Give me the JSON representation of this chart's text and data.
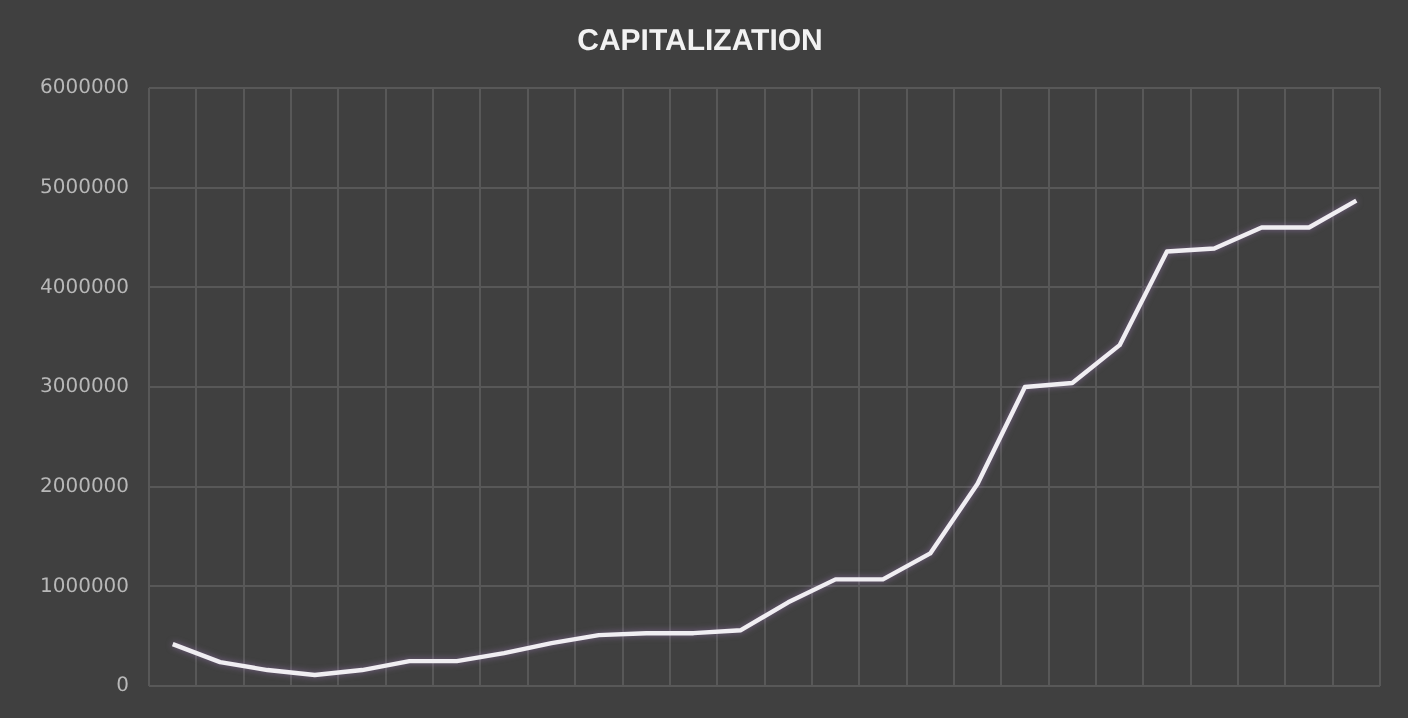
{
  "chart_data": {
    "type": "line",
    "title": "CAPITALIZATION",
    "categories": [
      null,
      null,
      null,
      null,
      null,
      null,
      null,
      null,
      null,
      null,
      null,
      null,
      null,
      null,
      null,
      null,
      null,
      null,
      null,
      null,
      null,
      null,
      null,
      null,
      null,
      null
    ],
    "series": [
      {
        "color": "#f0eef2",
        "values": [
          420000,
          240000,
          160000,
          110000,
          160000,
          250000,
          250000,
          330000,
          430000,
          510000,
          530000,
          530000,
          560000,
          840000,
          1070000,
          1070000,
          1330000,
          2030000,
          3000000,
          3040000,
          3420000,
          4360000,
          4390000,
          4600000,
          4600000,
          4870000
        ]
      }
    ],
    "ylim": [
      0,
      6000000
    ],
    "yticks": [
      0,
      1000000,
      2000000,
      3000000,
      4000000,
      5000000,
      6000000
    ],
    "grid": true,
    "legend": false,
    "tick_labels": "y",
    "marker": "none",
    "line_style": "solid"
  }
}
